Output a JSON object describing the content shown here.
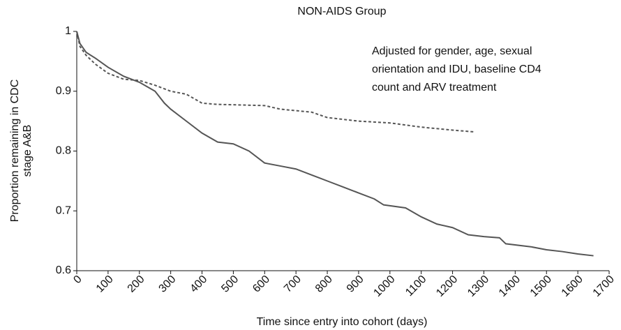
{
  "chart_data": {
    "type": "line",
    "title": "NON-AIDS Group",
    "xlabel": "Time since entry into cohort (days)",
    "ylabel": [
      "Proportion remaining in CDC",
      "stage A&B"
    ],
    "annotation": [
      "Adjusted for gender, age, sexual",
      "orientation and IDU, baseline CD4",
      "count and ARV treatment"
    ],
    "xlim": [
      0,
      1700
    ],
    "xticks": [
      0,
      100,
      200,
      300,
      400,
      500,
      600,
      700,
      800,
      900,
      1000,
      1100,
      1200,
      1300,
      1400,
      1500,
      1600,
      1700
    ],
    "ylim": [
      0.6,
      1
    ],
    "yticks": [
      0.6,
      0.7,
      0.8,
      0.9,
      1
    ],
    "series": [
      {
        "color": "#555555",
        "dashed": false,
        "x": [
          0,
          10,
          30,
          60,
          100,
          150,
          200,
          250,
          280,
          300,
          350,
          400,
          450,
          500,
          550,
          600,
          650,
          700,
          750,
          800,
          850,
          900,
          950,
          980,
          1050,
          1100,
          1150,
          1200,
          1250,
          1300,
          1350,
          1370,
          1450,
          1500,
          1550,
          1600,
          1650
        ],
        "values": [
          1,
          0.98,
          0.965,
          0.955,
          0.94,
          0.925,
          0.915,
          0.9,
          0.88,
          0.87,
          0.85,
          0.83,
          0.815,
          0.812,
          0.8,
          0.78,
          0.775,
          0.77,
          0.76,
          0.75,
          0.74,
          0.73,
          0.72,
          0.71,
          0.705,
          0.69,
          0.678,
          0.672,
          0.66,
          0.657,
          0.655,
          0.645,
          0.64,
          0.635,
          0.632,
          0.628,
          0.625
        ]
      },
      {
        "color": "#555555",
        "dashed": true,
        "x": [
          0,
          10,
          30,
          60,
          100,
          150,
          200,
          250,
          300,
          350,
          400,
          450,
          600,
          650,
          750,
          800,
          900,
          1000,
          1100,
          1200,
          1270
        ],
        "values": [
          1,
          0.975,
          0.96,
          0.945,
          0.93,
          0.92,
          0.918,
          0.91,
          0.9,
          0.895,
          0.88,
          0.878,
          0.876,
          0.87,
          0.865,
          0.856,
          0.85,
          0.847,
          0.84,
          0.835,
          0.832
        ]
      }
    ]
  }
}
